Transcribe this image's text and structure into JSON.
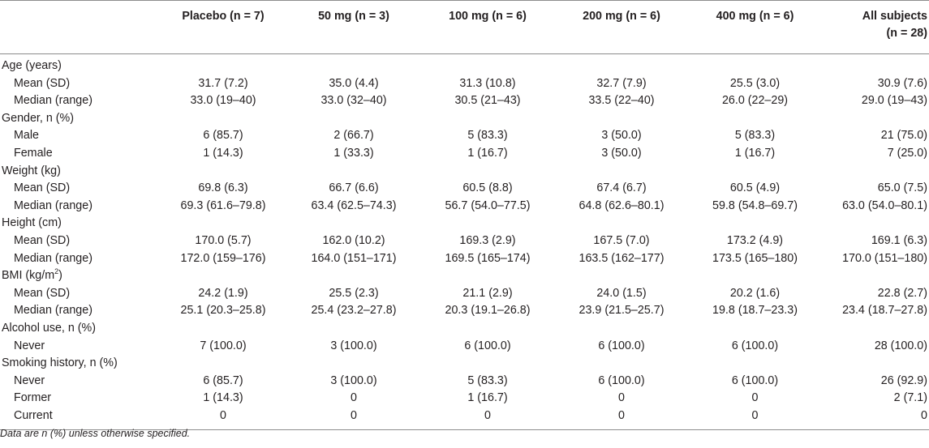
{
  "table": {
    "headers": [
      {
        "label": ""
      },
      {
        "label": "Placebo (n = 7)"
      },
      {
        "label": "50 mg (n = 3)"
      },
      {
        "label": "100 mg (n = 6)"
      },
      {
        "label": "200 mg (n = 6)"
      },
      {
        "label": "400 mg (n = 6)"
      },
      {
        "label": "All subjects",
        "label2": "(n = 28)"
      }
    ],
    "sections": [
      {
        "title": "Age (years)",
        "rows": [
          {
            "label": "Mean (SD)",
            "values": [
              "31.7 (7.2)",
              "35.0 (4.4)",
              "31.3 (10.8)",
              "32.7 (7.9)",
              "25.5 (3.0)",
              "30.9 (7.6)"
            ]
          },
          {
            "label": "Median (range)",
            "values": [
              "33.0 (19–40)",
              "33.0 (32–40)",
              "30.5 (21–43)",
              "33.5 (22–40)",
              "26.0 (22–29)",
              "29.0 (19–43)"
            ]
          }
        ]
      },
      {
        "title": "Gender, n (%)",
        "rows": [
          {
            "label": "Male",
            "values": [
              "6 (85.7)",
              "2 (66.7)",
              "5 (83.3)",
              "3 (50.0)",
              "5 (83.3)",
              "21 (75.0)"
            ]
          },
          {
            "label": "Female",
            "values": [
              "1 (14.3)",
              "1 (33.3)",
              "1 (16.7)",
              "3 (50.0)",
              "1 (16.7)",
              "7 (25.0)"
            ]
          }
        ]
      },
      {
        "title": "Weight (kg)",
        "rows": [
          {
            "label": "Mean (SD)",
            "values": [
              "69.8 (6.3)",
              "66.7 (6.6)",
              "60.5 (8.8)",
              "67.4 (6.7)",
              "60.5 (4.9)",
              "65.0 (7.5)"
            ]
          },
          {
            "label": "Median (range)",
            "values": [
              "69.3 (61.6–79.8)",
              "63.4 (62.5–74.3)",
              "56.7 (54.0–77.5)",
              "64.8 (62.6–80.1)",
              "59.8 (54.8–69.7)",
              "63.0 (54.0–80.1)"
            ]
          }
        ]
      },
      {
        "title": "Height (cm)",
        "rows": [
          {
            "label": "Mean (SD)",
            "values": [
              "170.0 (5.7)",
              "162.0 (10.2)",
              "169.3 (2.9)",
              "167.5 (7.0)",
              "173.2 (4.9)",
              "169.1 (6.3)"
            ]
          },
          {
            "label": "Median (range)",
            "values": [
              "172.0 (159–176)",
              "164.0 (151–171)",
              "169.5 (165–174)",
              "163.5 (162–177)",
              "173.5 (165–180)",
              "170.0 (151–180)"
            ]
          }
        ]
      },
      {
        "title": "BMI (kg/m",
        "title_sup": "2",
        "title_end": ")",
        "rows": [
          {
            "label": "Mean (SD)",
            "values": [
              "24.2 (1.9)",
              "25.5 (2.3)",
              "21.1 (2.9)",
              "24.0 (1.5)",
              "20.2 (1.6)",
              "22.8 (2.7)"
            ]
          },
          {
            "label": "Median (range)",
            "values": [
              "25.1 (20.3–25.8)",
              "25.4 (23.2–27.8)",
              "20.3 (19.1–26.8)",
              "23.9 (21.5–25.7)",
              "19.8 (18.7–23.3)",
              "23.4 (18.7–27.8)"
            ]
          }
        ]
      },
      {
        "title": "Alcohol use, n (%)",
        "rows": [
          {
            "label": "Never",
            "values": [
              "7 (100.0)",
              "3 (100.0)",
              "6 (100.0)",
              "6 (100.0)",
              "6 (100.0)",
              "28 (100.0)"
            ]
          }
        ]
      },
      {
        "title": "Smoking history, n (%)",
        "rows": [
          {
            "label": "Never",
            "values": [
              "6 (85.7)",
              "3 (100.0)",
              "5 (83.3)",
              "6 (100.0)",
              "6 (100.0)",
              "26 (92.9)"
            ]
          },
          {
            "label": "Former",
            "values": [
              "1 (14.3)",
              "0",
              "1 (16.7)",
              "0",
              "0",
              "2 (7.1)"
            ]
          },
          {
            "label": "Current",
            "values": [
              "0",
              "0",
              "0",
              "0",
              "0",
              "0"
            ]
          }
        ]
      }
    ]
  },
  "footnote": "Data are n (%) unless otherwise specified."
}
